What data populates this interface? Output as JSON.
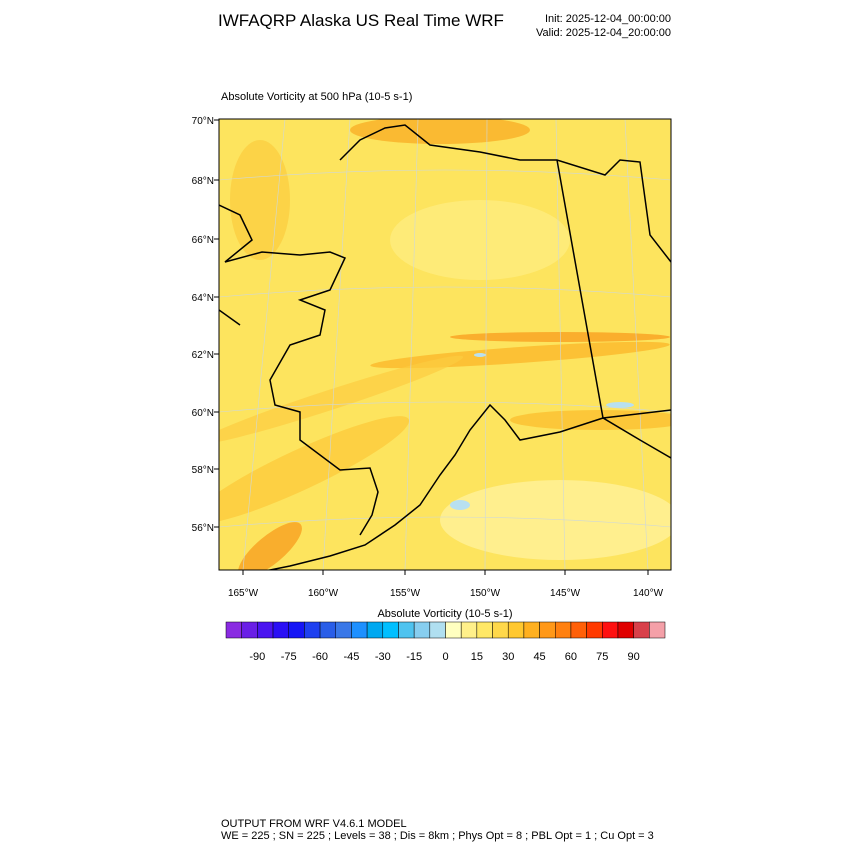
{
  "header": {
    "title": "IWFAQRP Alaska US Real Time WRF",
    "init": "Init: 2025-12-04_00:00:00",
    "valid": "Valid: 2025-12-04_20:00:00"
  },
  "map": {
    "subtitle": "Absolute Vorticity at 500 hPa   (10-5 s-1)",
    "lat_labels": [
      "70°N",
      "68°N",
      "66°N",
      "64°N",
      "62°N",
      "60°N",
      "58°N",
      "56°N"
    ],
    "lon_labels": [
      "165°W",
      "160°W",
      "155°W",
      "150°W",
      "145°W",
      "140°W"
    ]
  },
  "colorbar": {
    "title": "Absolute Vorticity  (10-5 s-1)",
    "lim": [
      -105,
      105
    ],
    "ticks": [
      -90,
      -75,
      -60,
      -45,
      -30,
      -15,
      0,
      15,
      30,
      45,
      60,
      75,
      90
    ],
    "colors": [
      "#8a2be2",
      "#6a1fe6",
      "#4b14f0",
      "#2a0ff5",
      "#1515f5",
      "#1e40f0",
      "#2a5ee8",
      "#3a78e8",
      "#1e90ff",
      "#00a8f0",
      "#00bfff",
      "#4fc3ef",
      "#87cef0",
      "#b0dff0",
      "#ffffc0",
      "#fff08a",
      "#ffe866",
      "#ffd84a",
      "#ffc830",
      "#ffb020",
      "#ff9818",
      "#ff8010",
      "#ff6008",
      "#ff3a00",
      "#ff1010",
      "#e00000",
      "#d8404a",
      "#f4a0a8"
    ]
  },
  "footer": {
    "line1": "OUTPUT FROM WRF V4.6.1 MODEL",
    "line2": "WE = 225 ; SN = 225 ; Levels = 38 ; Dis = 8km ; Phys Opt = 8 ; PBL Opt = 1 ; Cu Opt = 3"
  }
}
